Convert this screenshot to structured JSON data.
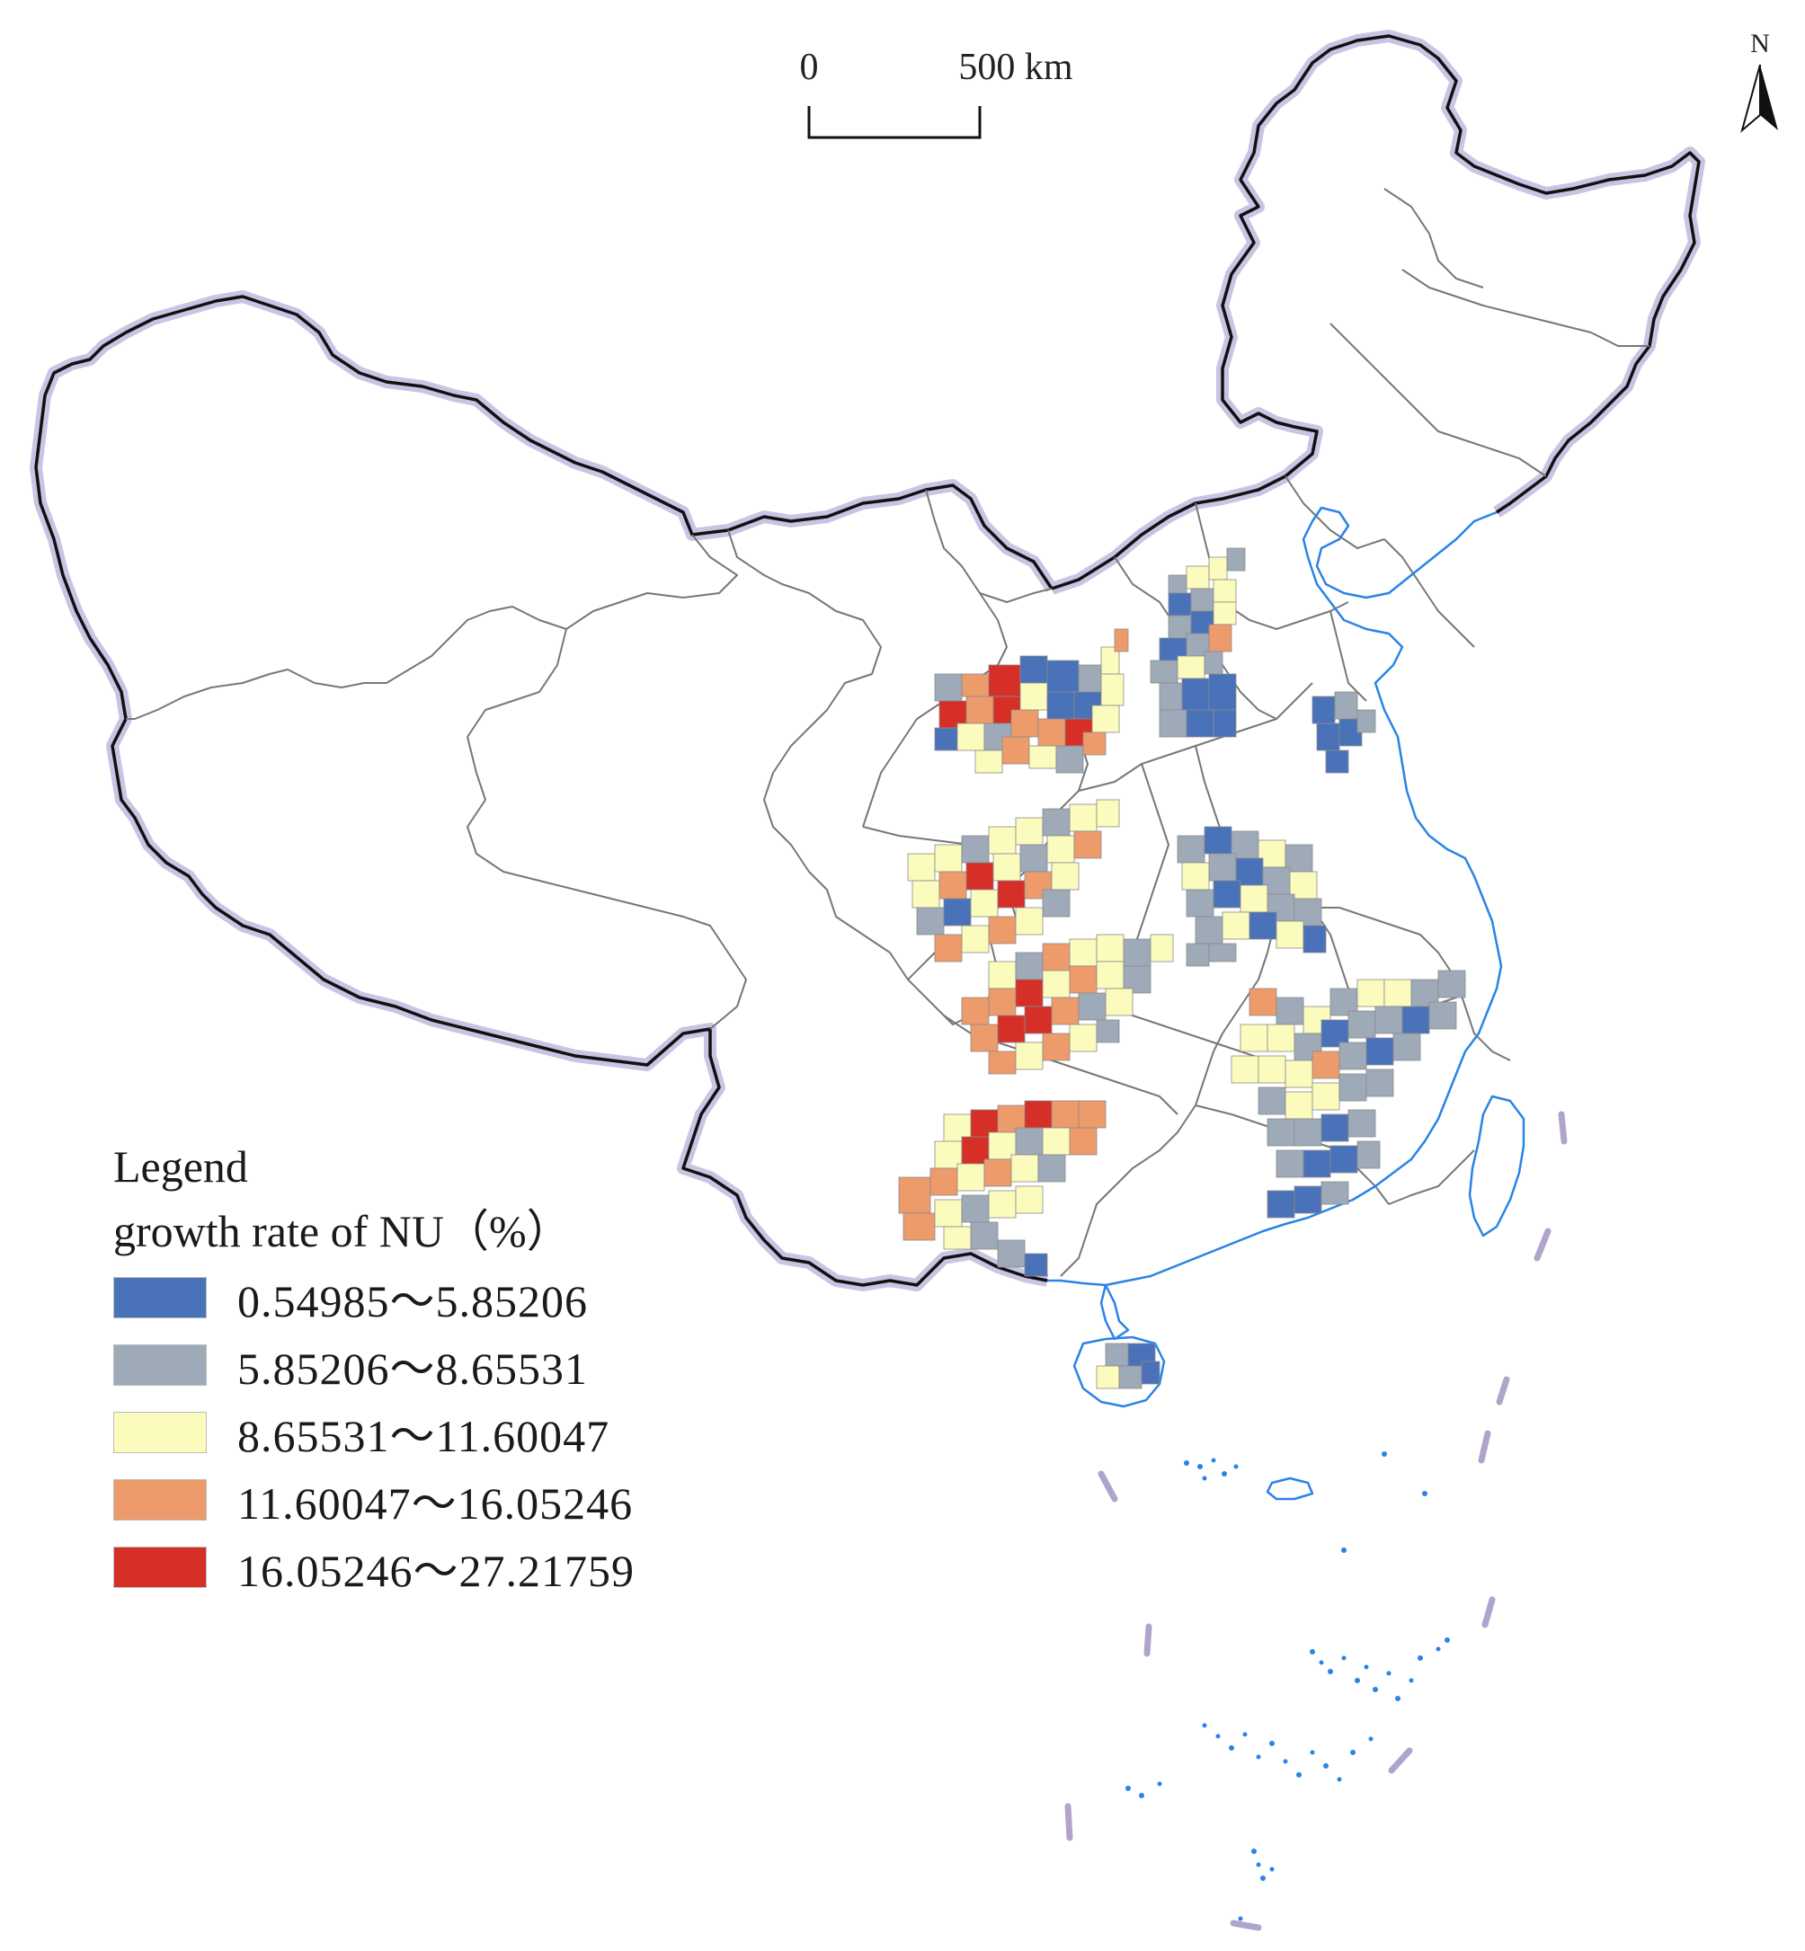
{
  "scale_bar": {
    "start_label": "0",
    "end_label": "500 km"
  },
  "north_arrow": {
    "label": "N"
  },
  "legend": {
    "title": "Legend",
    "subtitle": "growth rate of NU（%）",
    "classes": [
      {
        "range": "0.54985～5.85206",
        "color": "#4a72b8"
      },
      {
        "range": "5.85206～8.65531",
        "color": "#9eaab8"
      },
      {
        "range": "8.65531～11.60047",
        "color": "#fbfbbd"
      },
      {
        "range": "11.60047～16.05246",
        "color": "#ee9b6c"
      },
      {
        "range": "16.05246～27.21759",
        "color": "#d62f27"
      }
    ]
  },
  "colors": {
    "boundary": "#111111",
    "boundary_halo": "#b9b3d9",
    "province_line": "#777777",
    "coast": "#2a83e6",
    "nine_dash": "#b0a4cc"
  }
}
